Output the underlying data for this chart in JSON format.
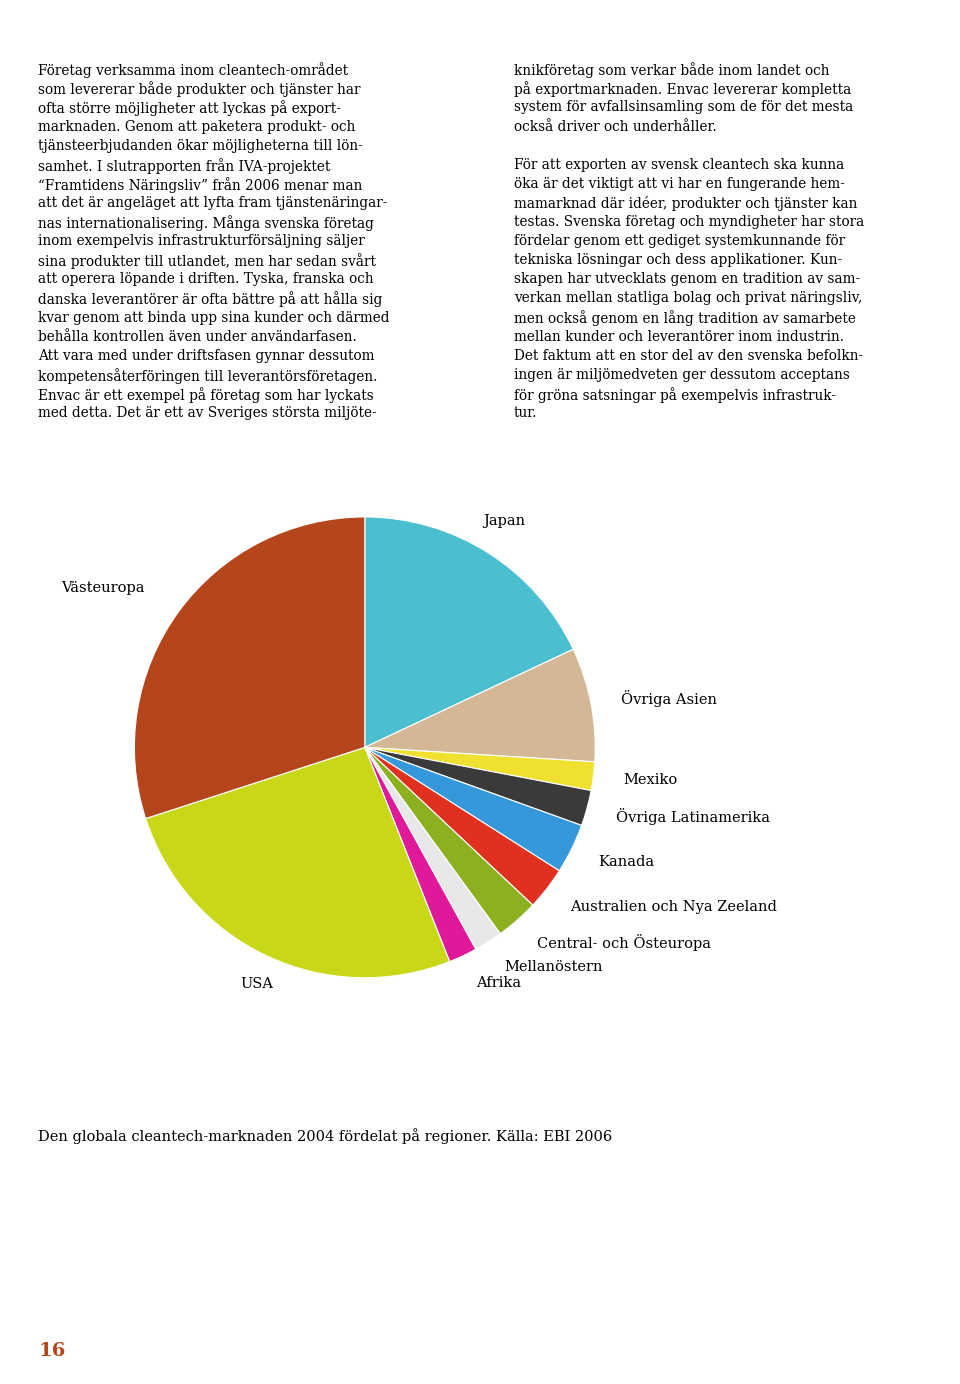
{
  "title": "Den globala cleantech-marknaden 2004 fördelat på regioner. Källa: EBI 2006",
  "page_number": "16",
  "background_color": "#FFFFFF",
  "ordered_slices": [
    {
      "label": "Japan",
      "value": 18,
      "color": "#4BBFCF"
    },
    {
      "label": "Övriga Asien",
      "value": 8,
      "color": "#D4B896"
    },
    {
      "label": "Mexiko",
      "value": 2,
      "color": "#F0E030"
    },
    {
      "label": "Övriga Latinamerika",
      "value": 2.5,
      "color": "#3A3A3A"
    },
    {
      "label": "Kanada",
      "value": 3.5,
      "color": "#3498DB"
    },
    {
      "label": "Australien och Nya Zeeland",
      "value": 3,
      "color": "#E03020"
    },
    {
      "label": "Central- och Östeuropa",
      "value": 3,
      "color": "#8CB020"
    },
    {
      "label": "Mellanöstern",
      "value": 2,
      "color": "#E8E8E8"
    },
    {
      "label": "Afrika",
      "value": 2,
      "color": "#E0189A"
    },
    {
      "label": "USA",
      "value": 26,
      "color": "#C8D818"
    },
    {
      "label": "Västeuropa",
      "value": 30,
      "color": "#B5451B"
    }
  ],
  "left_col": [
    "Företag verksamma inom cleantech-området",
    "som levererar både produkter och tjänster har",
    "ofta större möjligheter att lyckas på export-",
    "marknaden. Genom att paketera produkt- och",
    "tjänsteerbjudanden ökar möjligheterna till lön-",
    "samhet. I slutrapporten från IVA-projektet",
    "“Framtidens Näringsliv” från 2006 menar man",
    "att det är angeläget att lyfta fram tjänstenäringar-",
    "nas internationalisering. Många svenska företag",
    "inom exempelvis infrastrukturförsäljning säljer",
    "sina produkter till utlandet, men har sedan svårt",
    "att operera löpande i driften. Tyska, franska och",
    "danska leverantörer är ofta bättre på att hålla sig",
    "kvar genom att binda upp sina kunder och därmed",
    "behålla kontrollen även under användarfasen.",
    "Att vara med under driftsfasen gynnar dessutom",
    "kompetensåterföringen till leverantörsföretagen.",
    "Envac är ett exempel på företag som har lyckats",
    "med detta. Det är ett av Sveriges största miljöte-"
  ],
  "right_col": [
    "knikföretag som verkar både inom landet och",
    "på exportmarknaden. Envac levererar kompletta",
    "system för avfallsinsamling som de för det mesta",
    "också driver och underhåller.",
    "",
    "För att exporten av svensk cleantech ska kunna",
    "öka är det viktigt att vi har en fungerande hem-",
    "mamarknad där idéer, produkter och tjänster kan",
    "testas. Svenska företag och myndigheter har stora",
    "fördelar genom ett gediget systemkunnande för",
    "tekniska lösningar och dess applikationer. Kun-",
    "skapen har utvecklats genom en tradition av sam-",
    "verkan mellan statliga bolag och privat näringsliv,",
    "men också genom en lång tradition av samarbete",
    "mellan kunder och leverantörer inom industrin.",
    "Det faktum att en stor del av den svenska befolkn-",
    "ingen är miljömedveten ger dessutom acceptans",
    "för gröna satsningar på exempelvis infrastruk-",
    "tur."
  ],
  "text_fontsize": 9.8,
  "label_fontsize": 10.5,
  "title_fontsize": 10.5,
  "page_fontsize": 14,
  "page_color": "#B5451B"
}
